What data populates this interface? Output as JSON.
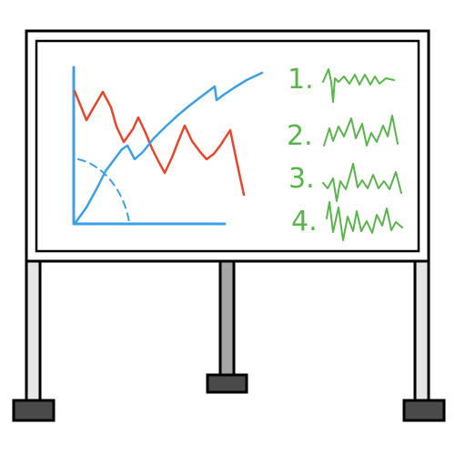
{
  "whiteboard": {
    "list_labels": [
      "1.",
      "2.",
      "3.",
      "4."
    ],
    "colors": {
      "frame": "#000000",
      "board": "#ffffff",
      "axis": "#3aa0e8",
      "curve_blue": "#3aa0e8",
      "curve_red": "#e8452a",
      "writing": "#57b54a",
      "stand": "#e6e6e6",
      "stand_center": "#a6a6a6",
      "feet": "#4a4a4a"
    },
    "icons": {
      "graph": "line-graph-sketch",
      "list_items": "squiggle-scribble"
    }
  }
}
